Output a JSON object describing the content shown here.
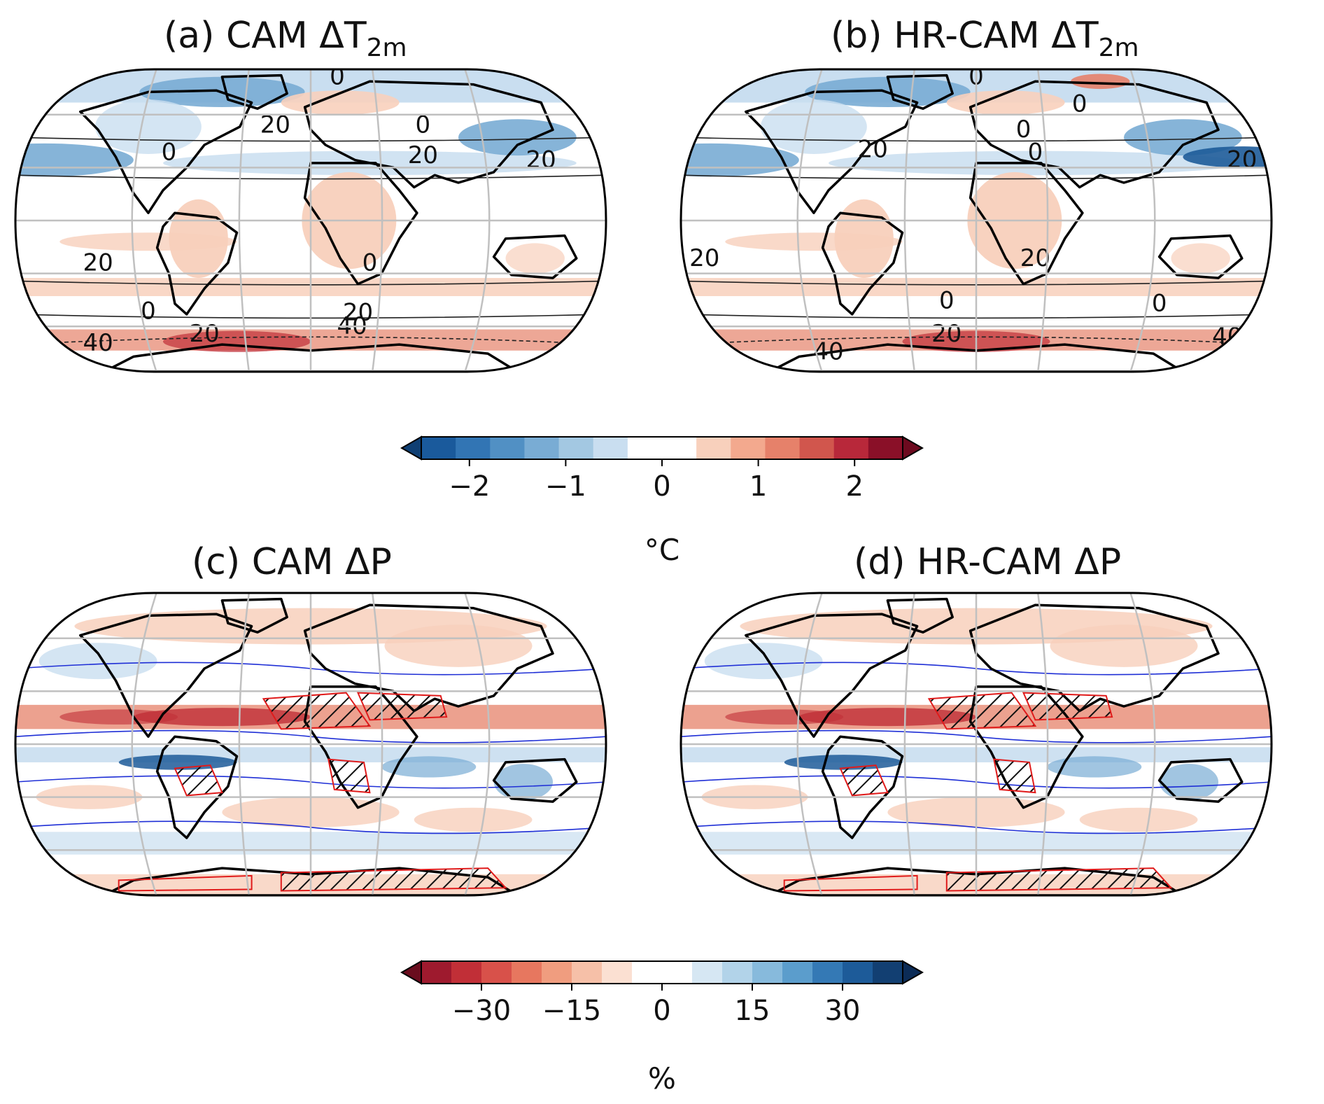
{
  "panels": [
    {
      "id": "a",
      "title_prefix": "(a) CAM ΔT",
      "title_sub": "2m",
      "field": "temperature",
      "contour_labels": [
        "0",
        "20",
        "0",
        "0",
        "20",
        "20",
        "20",
        "0",
        "0",
        "20",
        "40",
        "20",
        "40"
      ]
    },
    {
      "id": "b",
      "title_prefix": "(b) HR-CAM ΔT",
      "title_sub": "2m",
      "field": "temperature",
      "contour_labels": [
        "0",
        "0",
        "20",
        "0",
        "0",
        "20",
        "20",
        "20",
        "0",
        "20",
        "0",
        "40",
        "40"
      ]
    },
    {
      "id": "c",
      "title_prefix": "(c) CAM ΔP",
      "title_sub": "",
      "field": "precip",
      "contour_labels": []
    },
    {
      "id": "d",
      "title_prefix": "(d) HR-CAM ΔP",
      "title_sub": "",
      "field": "precip",
      "contour_labels": []
    }
  ],
  "colorbars": {
    "temperature": {
      "unit": "°C",
      "ticks": [
        "−2",
        "−1",
        "0",
        "1",
        "2"
      ],
      "tick_values": [
        -2,
        -1,
        0,
        1,
        2
      ],
      "range": [
        -2.5,
        2.5
      ],
      "colors": [
        "#1a5a9c",
        "#3275b4",
        "#5190c4",
        "#79acd4",
        "#a3c8e2",
        "#c9def0",
        "#ffffff",
        "#ffffff",
        "#f8d0bc",
        "#f3a98e",
        "#e6816a",
        "#d1564d",
        "#b8283a",
        "#8a1028"
      ],
      "over_color": "#6d0a1f",
      "under_color": "#0f3f73"
    },
    "precip": {
      "unit": "%",
      "ticks": [
        "−30",
        "−15",
        "0",
        "15",
        "30"
      ],
      "tick_values": [
        -30,
        -15,
        0,
        15,
        30
      ],
      "range": [
        -40,
        40
      ],
      "colors": [
        "#9e1a2e",
        "#c12f37",
        "#d8514a",
        "#e7775f",
        "#f09d7f",
        "#f6c0a8",
        "#fbe0d2",
        "#ffffff",
        "#ffffff",
        "#d6e7f3",
        "#b2d3e9",
        "#87badc",
        "#5b9dcc",
        "#3479b5",
        "#1d5b99",
        "#123f72"
      ],
      "over_color": "#0c2c57",
      "under_color": "#6a0d1e"
    }
  },
  "colors": {
    "warm": "#e6816a",
    "warm_light": "#f8d0bc",
    "warm_dark": "#c12f37",
    "cool": "#79acd4",
    "cool_light": "#c9def0",
    "cool_dark": "#1d5b99",
    "coast": "#000000",
    "grid": "#c0c0c0",
    "blue_contour": "#1f2fd6",
    "red_contour": "#e01b1b"
  }
}
